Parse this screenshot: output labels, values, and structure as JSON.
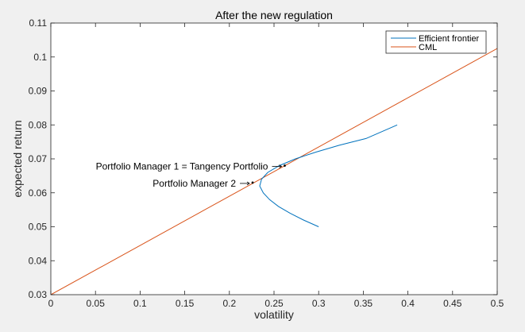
{
  "chart_data": {
    "type": "line",
    "title": "After the new regulation",
    "xlabel": "volatility",
    "ylabel": "expected return",
    "xlim": [
      0,
      0.5
    ],
    "ylim": [
      0.03,
      0.11
    ],
    "xticks": [
      "0",
      "0.05",
      "0.1",
      "0.15",
      "0.2",
      "0.25",
      "0.3",
      "0.35",
      "0.4",
      "0.45",
      "0.5"
    ],
    "yticks": [
      "0.03",
      "0.04",
      "0.05",
      "0.06",
      "0.07",
      "0.08",
      "0.09",
      "0.1",
      "0.11"
    ],
    "grid": false,
    "legend_position": "top-right",
    "series": [
      {
        "name": "Efficient frontier",
        "color": "#0072bd",
        "x": [
          0.3,
          0.283,
          0.268,
          0.255,
          0.245,
          0.238,
          0.234,
          0.236,
          0.243,
          0.256,
          0.274,
          0.297,
          0.323,
          0.353,
          0.388
        ],
        "y": [
          0.05,
          0.052,
          0.054,
          0.056,
          0.058,
          0.06,
          0.062,
          0.064,
          0.066,
          0.068,
          0.07,
          0.072,
          0.074,
          0.076,
          0.08
        ]
      },
      {
        "name": "CML",
        "color": "#d95319",
        "x": [
          0,
          0.5
        ],
        "y": [
          0.03,
          0.1025
        ]
      }
    ],
    "points": [
      {
        "label": "Portfolio Manager 1 = Tangency Portfolio",
        "x": 0.262,
        "y": 0.068
      },
      {
        "label": "Portfolio Manager 2",
        "x": 0.226,
        "y": 0.063
      }
    ]
  }
}
